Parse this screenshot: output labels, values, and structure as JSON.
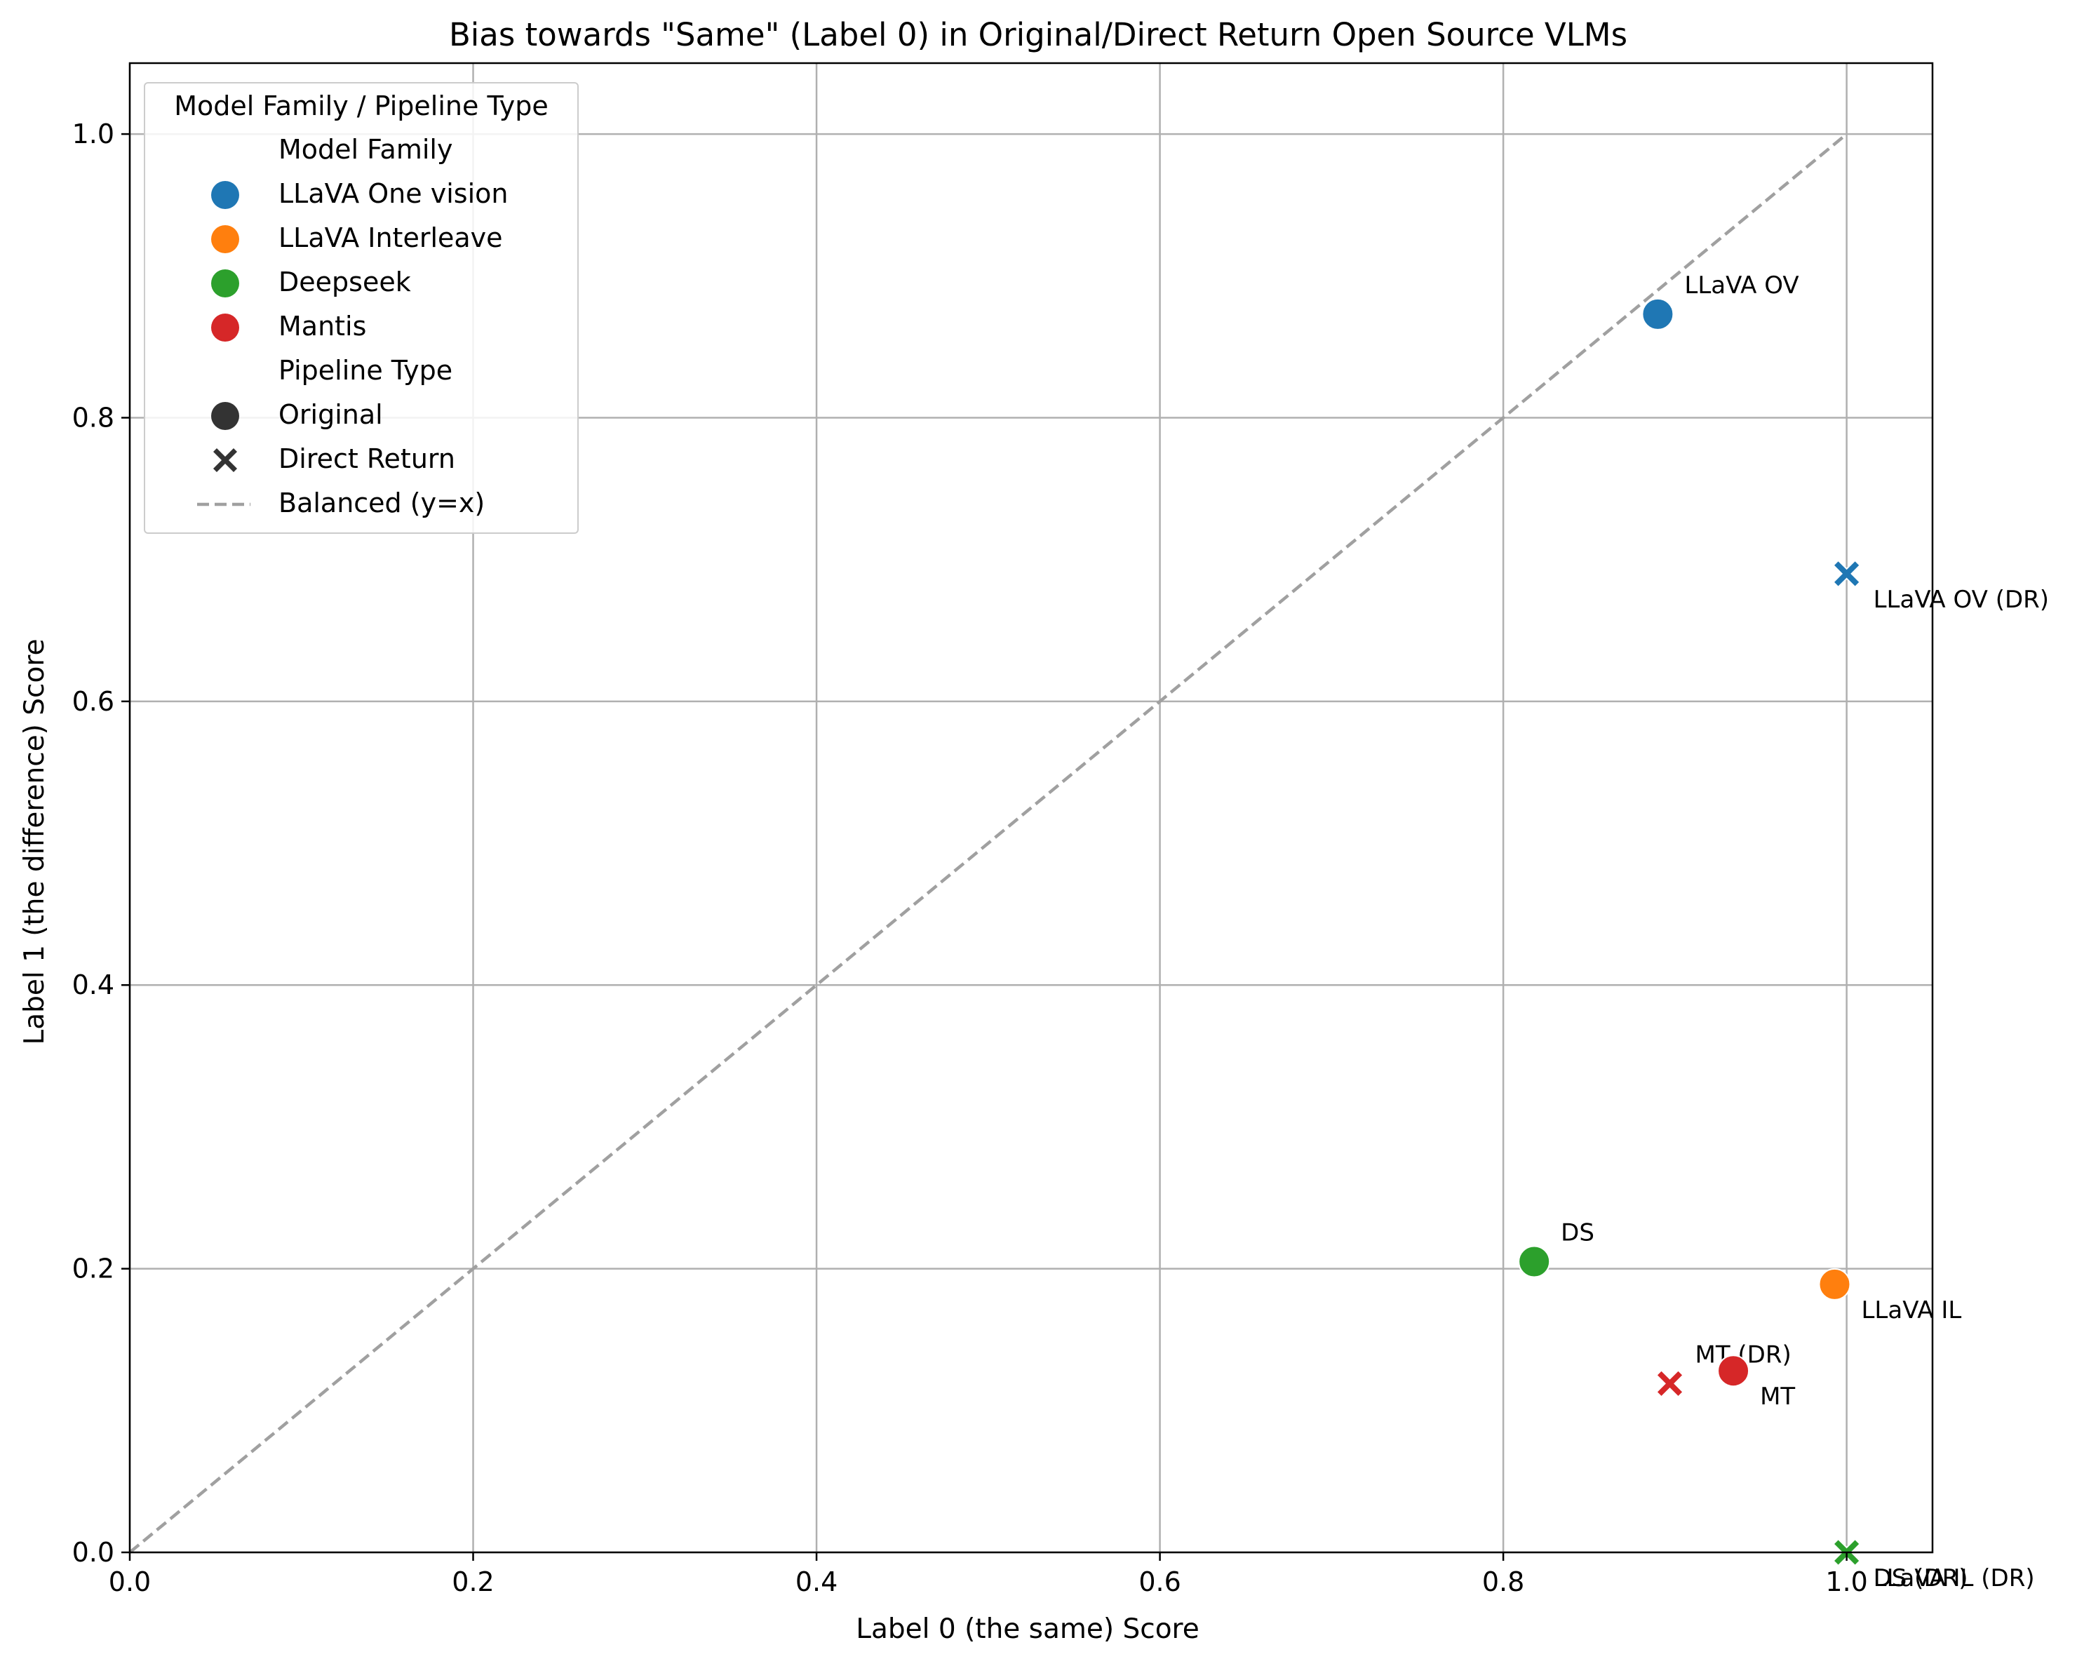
{
  "chart_data": {
    "type": "scatter",
    "title": "Bias towards \"Same\" (Label 0) in Original/Direct Return Open Source VLMs",
    "xlabel": "Label 0 (the same) Score",
    "ylabel": "Label 1 (the difference) Score",
    "xlim": [
      0.0,
      1.05
    ],
    "ylim": [
      0.0,
      1.05
    ],
    "xticks": [
      "0.0",
      "0.2",
      "0.4",
      "0.6",
      "0.8",
      "1.0"
    ],
    "yticks": [
      "0.0",
      "0.2",
      "0.4",
      "0.6",
      "0.8",
      "1.0"
    ],
    "grid": true,
    "legend_position": "top-left",
    "legend": {
      "title": "Model Family / Pipeline Type",
      "family_header": "Model Family",
      "families": [
        {
          "name": "LLaVA One vision",
          "color": "#1f77b4"
        },
        {
          "name": "LLaVA Interleave",
          "color": "#ff7f0e"
        },
        {
          "name": "Deepseek",
          "color": "#2ca02c"
        },
        {
          "name": "Mantis",
          "color": "#d62728"
        }
      ],
      "pipeline_header": "Pipeline Type",
      "pipelines": [
        {
          "name": "Original",
          "marker": "circle"
        },
        {
          "name": "Direct Return",
          "marker": "x"
        }
      ],
      "reference_line": "Balanced (y=x)"
    },
    "points": [
      {
        "label": "LLaVA OV",
        "x": 0.89,
        "y": 0.873,
        "color": "#1f77b4",
        "marker": "circle",
        "label_pos": "upper-right"
      },
      {
        "label": "LLaVA OV (DR)",
        "x": 1.0,
        "y": 0.69,
        "color": "#1f77b4",
        "marker": "x",
        "label_pos": "lower-right"
      },
      {
        "label": "DS",
        "x": 0.818,
        "y": 0.205,
        "color": "#2ca02c",
        "marker": "circle",
        "label_pos": "upper-right"
      },
      {
        "label": "LLaVA IL",
        "x": 0.993,
        "y": 0.189,
        "color": "#ff7f0e",
        "marker": "circle",
        "label_pos": "lower-right"
      },
      {
        "label": "MT (DR)",
        "x": 0.897,
        "y": 0.119,
        "color": "#d62728",
        "marker": "x",
        "label_pos": "upper-right-far"
      },
      {
        "label": "MT",
        "x": 0.934,
        "y": 0.128,
        "color": "#d62728",
        "marker": "circle",
        "label_pos": "lower-right"
      },
      {
        "label": "LLaVA IL (DR)",
        "x": 1.0,
        "y": 0.0,
        "color": "#ff7f0e",
        "marker": "x",
        "label_pos": "lower-right"
      },
      {
        "label": "DS (DR)",
        "x": 1.0,
        "y": 0.0,
        "color": "#2ca02c",
        "marker": "x",
        "label_pos": "lower-right"
      }
    ]
  }
}
